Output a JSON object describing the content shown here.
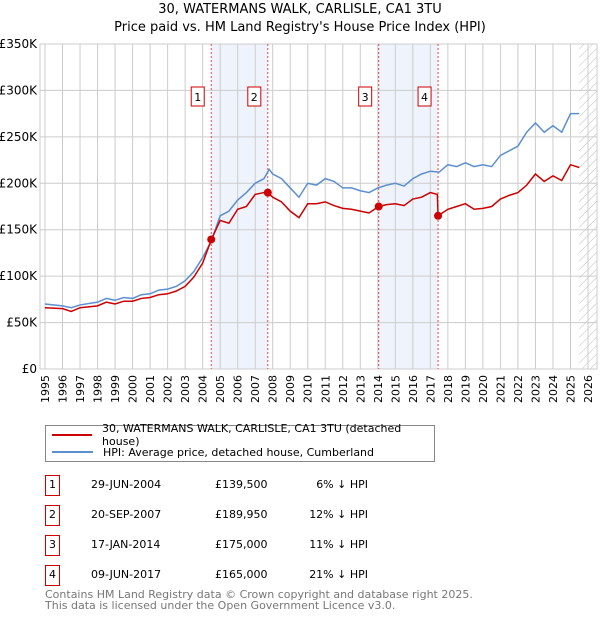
{
  "chart_data": {
    "type": "line",
    "title": "30, WATERMANS WALK, CARLISLE, CA1 3TU",
    "subtitle": "Price paid vs. HM Land Registry's House Price Index (HPI)",
    "xlim": [
      1995,
      2026
    ],
    "ylim": [
      0,
      350000
    ],
    "x_ticks": [
      "1995",
      "1996",
      "1997",
      "1998",
      "1999",
      "2000",
      "2001",
      "2002",
      "2003",
      "2004",
      "2005",
      "2006",
      "2007",
      "2008",
      "2009",
      "2010",
      "2011",
      "2012",
      "2013",
      "2014",
      "2015",
      "2016",
      "2017",
      "2018",
      "2019",
      "2020",
      "2021",
      "2022",
      "2023",
      "2024",
      "2025",
      "2026"
    ],
    "y_ticks": [
      {
        "v": 0,
        "label": "£0"
      },
      {
        "v": 50000,
        "label": "£50K"
      },
      {
        "v": 100000,
        "label": "£100K"
      },
      {
        "v": 150000,
        "label": "£150K"
      },
      {
        "v": 200000,
        "label": "£200K"
      },
      {
        "v": 250000,
        "label": "£250K"
      },
      {
        "v": 300000,
        "label": "£300K"
      },
      {
        "v": 350000,
        "label": "£350K"
      }
    ],
    "grid": true,
    "series": [
      {
        "name": "30, WATERMANS WALK, CARLISLE, CA1 3TU (detached house)",
        "color": "#cc0000",
        "x": [
          1995,
          1996,
          1996.5,
          1997,
          1998,
          1998.5,
          1999,
          1999.5,
          2000,
          2000.5,
          2001,
          2001.5,
          2002,
          2002.5,
          2003,
          2003.5,
          2004,
          2004.5,
          2005,
          2005.5,
          2006,
          2006.5,
          2007,
          2007.5,
          2007.72,
          2008,
          2008.5,
          2009,
          2009.5,
          2010,
          2010.5,
          2011,
          2011.5,
          2012,
          2012.5,
          2013,
          2013.5,
          2014.05,
          2014.5,
          2015,
          2015.5,
          2016,
          2016.5,
          2017,
          2017.4,
          2017.44,
          2018,
          2018.5,
          2019,
          2019.5,
          2020,
          2020.5,
          2021,
          2021.5,
          2022,
          2022.5,
          2023,
          2023.5,
          2024,
          2024.5,
          2025,
          2025.5
        ],
        "y": [
          66000,
          65000,
          62000,
          66000,
          68000,
          72000,
          70000,
          73000,
          73000,
          76000,
          77000,
          80000,
          81000,
          84000,
          89000,
          99000,
          114000,
          139500,
          160000,
          157000,
          172000,
          175000,
          188000,
          190000,
          189950,
          185000,
          180000,
          170000,
          163000,
          178000,
          178000,
          180000,
          176000,
          173000,
          172000,
          170000,
          168000,
          175000,
          177000,
          178000,
          176000,
          183000,
          185000,
          190000,
          188000,
          165000,
          172000,
          175000,
          178000,
          172000,
          173000,
          175000,
          183000,
          187000,
          190000,
          198000,
          210000,
          202000,
          208000,
          203000,
          220000,
          217000
        ]
      },
      {
        "name": "HPI: Average price, detached house, Cumberland",
        "color": "#5b8fd0",
        "x": [
          1995,
          1996,
          1996.5,
          1997,
          1998,
          1998.5,
          1999,
          1999.5,
          2000,
          2000.5,
          2001,
          2001.5,
          2002,
          2002.5,
          2003,
          2003.5,
          2004,
          2004.5,
          2005,
          2005.5,
          2006,
          2006.5,
          2007,
          2007.5,
          2007.8,
          2008,
          2008.5,
          2009,
          2009.5,
          2010,
          2010.5,
          2011,
          2011.5,
          2012,
          2012.5,
          2013,
          2013.5,
          2014,
          2014.5,
          2015,
          2015.5,
          2016,
          2016.5,
          2017,
          2017.5,
          2018,
          2018.5,
          2019,
          2019.5,
          2020,
          2020.5,
          2021,
          2021.5,
          2022,
          2022.5,
          2023,
          2023.5,
          2024,
          2024.5,
          2025,
          2025.5
        ],
        "y": [
          70000,
          68000,
          66000,
          69000,
          72000,
          76000,
          74000,
          77000,
          76000,
          80000,
          81000,
          85000,
          86000,
          89000,
          95000,
          105000,
          120000,
          138000,
          165000,
          170000,
          182000,
          190000,
          200000,
          205000,
          215000,
          210000,
          205000,
          195000,
          185000,
          200000,
          198000,
          205000,
          202000,
          195000,
          195000,
          192000,
          190000,
          195000,
          198000,
          200000,
          197000,
          205000,
          210000,
          213000,
          212000,
          220000,
          218000,
          222000,
          218000,
          220000,
          218000,
          230000,
          235000,
          240000,
          255000,
          265000,
          255000,
          262000,
          255000,
          275000,
          275000
        ]
      }
    ],
    "sales": [
      {
        "id": "1",
        "x": 2004.49,
        "y": 139500
      },
      {
        "id": "2",
        "x": 2007.72,
        "y": 189950
      },
      {
        "id": "3",
        "x": 2014.05,
        "y": 175000
      },
      {
        "id": "4",
        "x": 2017.44,
        "y": 165000
      }
    ],
    "shaded_ranges": [
      [
        2004.49,
        2007.72
      ],
      [
        2014.05,
        2017.44
      ]
    ],
    "forecast_start": 2025.5
  },
  "legend": {
    "property": "30, WATERMANS WALK, CARLISLE, CA1 3TU (detached house)",
    "hpi": "HPI: Average price, detached house, Cumberland"
  },
  "table": [
    {
      "num": "1",
      "date": "29-JUN-2004",
      "price": "£139,500",
      "hpi": "6% ↓ HPI"
    },
    {
      "num": "2",
      "date": "20-SEP-2007",
      "price": "£189,950",
      "hpi": "12% ↓ HPI"
    },
    {
      "num": "3",
      "date": "17-JAN-2014",
      "price": "£175,000",
      "hpi": "11% ↓ HPI"
    },
    {
      "num": "4",
      "date": "09-JUN-2017",
      "price": "£165,000",
      "hpi": "21% ↓ HPI"
    }
  ],
  "footer": {
    "line1": "Contains HM Land Registry data © Crown copyright and database right 2025.",
    "line2": "This data is licensed under the Open Government Licence v3.0."
  }
}
